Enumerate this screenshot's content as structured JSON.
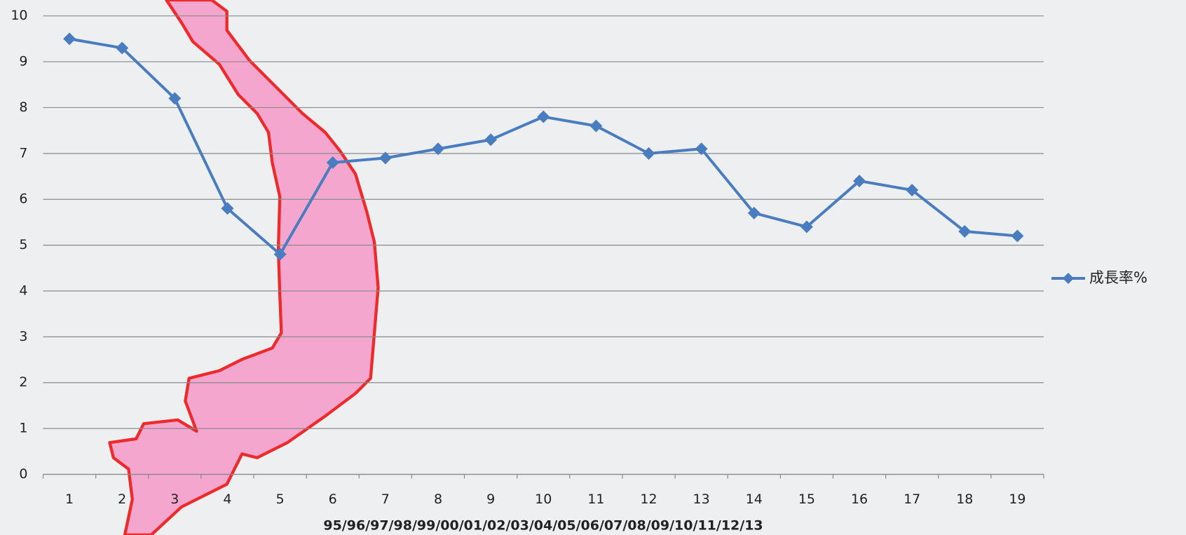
{
  "chart_data": {
    "type": "line",
    "x_label": "95/96/97/98/99/00/01/02/03/04/05/06/07/08/09/10/11/12/13",
    "categories": [
      "1",
      "2",
      "3",
      "4",
      "5",
      "6",
      "7",
      "8",
      "9",
      "10",
      "11",
      "12",
      "13",
      "14",
      "15",
      "16",
      "17",
      "18",
      "19"
    ],
    "series": [
      {
        "name": "成長率%",
        "color": "#4a7dbf",
        "values": [
          9.5,
          9.3,
          8.2,
          5.8,
          4.8,
          6.8,
          6.9,
          7.1,
          7.3,
          7.8,
          7.6,
          7.0,
          7.1,
          5.7,
          5.4,
          6.4,
          6.2,
          5.3,
          5.2
        ]
      }
    ],
    "ylim": [
      0,
      10
    ],
    "yticks": [
      0,
      1,
      2,
      3,
      4,
      5,
      6,
      7,
      8,
      9,
      10
    ],
    "grid": true,
    "legend": "right"
  }
}
